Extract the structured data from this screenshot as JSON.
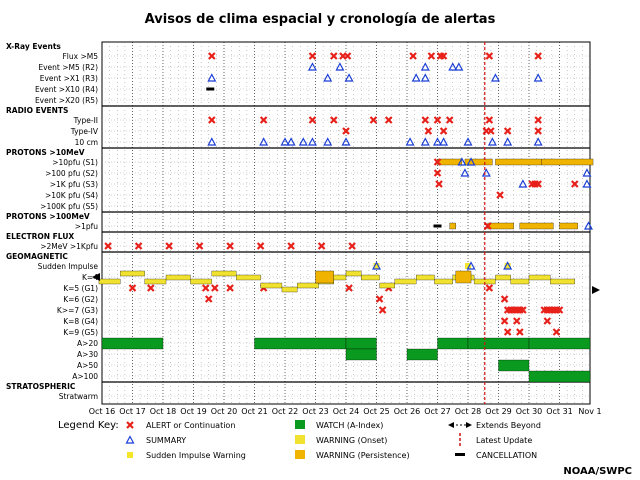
{
  "title": "Avisos de clima espacial y cronología de alertas",
  "credit": "NOAA/SWPC",
  "legend": {
    "key_label": "Legend Key:",
    "items": [
      {
        "symbol": "alert",
        "label": "ALERT or Continuation"
      },
      {
        "symbol": "summary",
        "label": "SUMMARY"
      },
      {
        "symbol": "sudden-impulse-warning",
        "label": "Sudden Impulse Warning"
      },
      {
        "symbol": "watch",
        "label": "WATCH (A-Index)"
      },
      {
        "symbol": "warning-onset",
        "label": "WARNING (Onset)"
      },
      {
        "symbol": "warning-persistence",
        "label": "WARNING (Persistence)"
      },
      {
        "symbol": "extends-beyond",
        "label": "Extends Beyond"
      },
      {
        "symbol": "latest-update",
        "label": "Latest Update"
      },
      {
        "symbol": "cancellation",
        "label": "CANCELLATION"
      }
    ]
  },
  "colors": {
    "alert": "#e8201a",
    "summary": "#1a3fd6",
    "sudden_impulse": "#f5e62a",
    "watch": "#0a9a1f",
    "warning_onset": "#f2e230",
    "warning_persistence": "#f0b400",
    "latest_update": "#d01010"
  },
  "chart_data": {
    "type": "timeline",
    "x": [
      "Oct 16",
      "Oct 17",
      "Oct 18",
      "Oct 19",
      "Oct 20",
      "Oct 21",
      "Oct 22",
      "Oct 23",
      "Oct 24",
      "Oct 25",
      "Oct 26",
      "Oct 27",
      "Oct 28",
      "Oct 29",
      "Oct 30",
      "Oct 31",
      "Nov 1"
    ],
    "latest_update_day": 12.55,
    "sections": [
      {
        "label": "X-Ray Events",
        "rows": [
          "Flux >M5",
          "Event >M5 (R2)",
          "Event >X1 (R3)",
          "Event >X10 (R4)",
          "Event >X20 (R5)"
        ]
      },
      {
        "label": "RADIO EVENTS",
        "rows": [
          "Type-II",
          "Type-IV",
          "10 cm"
        ]
      },
      {
        "label": "PROTONS >10MeV",
        "rows": [
          ">10pfu (S1)",
          ">100 pfu (S2)",
          ">1K pfu (S3)",
          ">10K pfu (S4)",
          ">100K pfu (S5)"
        ]
      },
      {
        "label": "PROTONS >100MeV",
        "rows": [
          ">1pfu"
        ]
      },
      {
        "label": "ELECTRON FLUX",
        "rows": [
          ">2MeV >1Kpfu"
        ]
      },
      {
        "label": "GEOMAGNETIC",
        "rows": [
          "Sudden Impulse",
          "K=4",
          "K=5 (G1)",
          "K=6 (G2)",
          "K>=7 (G3)",
          "K=8 (G4)",
          "K=9 (G5)",
          "A>20",
          "A>30",
          "A>50",
          "A>100"
        ]
      },
      {
        "label": "STRATOSPHERIC",
        "rows": [
          "Stratwarm"
        ]
      }
    ],
    "events": {
      "Flux >M5": {
        "alert": [
          3.6,
          6.9,
          7.6,
          7.9,
          8.05,
          10.2,
          10.8,
          11.1,
          11.2,
          12.7,
          14.3
        ]
      },
      "Event >M5 (R2)": {
        "summary": [
          6.9,
          7.8,
          10.6,
          11.5,
          11.7
        ]
      },
      "Event >X1 (R3)": {
        "summary": [
          3.6,
          7.4,
          8.1,
          10.3,
          10.6,
          12.9,
          14.3
        ]
      },
      "Event >X10 (R4)": {
        "cancel": [
          3.55
        ]
      },
      "Type-II": {
        "alert": [
          3.6,
          5.3,
          6.9,
          7.6,
          8.9,
          9.4,
          10.6,
          11.0,
          11.4,
          12.7,
          14.3
        ]
      },
      "Type-IV": {
        "alert": [
          8.0,
          10.7,
          11.2,
          12.6,
          12.75,
          13.3,
          14.3
        ]
      },
      "10 cm": {
        "summary": [
          3.6,
          5.3,
          6.0,
          6.2,
          6.6,
          6.9,
          7.4,
          8.0,
          10.1,
          10.6,
          11.0,
          11.2,
          12.0,
          12.8,
          13.3,
          14.3
        ]
      },
      ">10pfu (S1)": {
        "alert": [
          11.0
        ],
        "summary": [
          11.8,
          12.1
        ],
        "warn_persist": [
          [
            11.0,
            11.8
          ],
          [
            11.9,
            12.8
          ],
          [
            12.9,
            14.4
          ],
          [
            14.4,
            16.1
          ]
        ]
      },
      ">100 pfu (S2)": {
        "alert": [
          11.0
        ],
        "summary": [
          11.9,
          12.6,
          15.9
        ]
      },
      ">1K pfu (S3)": {
        "alert": [
          11.05,
          14.1,
          14.2,
          14.3,
          15.5
        ],
        "summary": [
          13.8,
          15.9
        ]
      },
      ">10K pfu (S4)": {
        "alert": [
          13.05
        ]
      },
      ">1pfu": {
        "alert": [
          12.65
        ],
        "summary": [
          15.95
        ],
        "warn_persist": [
          [
            11.4,
            11.6
          ],
          [
            12.65,
            13.5
          ],
          [
            13.7,
            14.8
          ],
          [
            15.0,
            15.6
          ]
        ],
        "cancel": [
          11.0
        ]
      },
      ">2MeV >1Kpfu": {
        "alert": [
          0.2,
          1.2,
          2.2,
          3.2,
          4.2,
          5.2,
          6.2,
          7.2,
          8.2
        ]
      },
      "Sudden Impulse": {
        "summary": [
          9.0,
          12.1,
          13.3
        ],
        "sudden_impulse": [
          9.0,
          12.0,
          13.3
        ]
      },
      "K=5 (G1)": {
        "alert": [
          1.0,
          1.6,
          3.4,
          3.7,
          4.2,
          5.3,
          8.1,
          9.4,
          12.7
        ]
      },
      "K=6 (G2)": {
        "alert": [
          3.5,
          9.1,
          13.2
        ]
      },
      "K>=7 (G3)": {
        "alert": [
          9.2,
          13.3,
          13.4,
          13.5,
          13.6,
          13.7,
          13.8,
          14.5,
          14.6,
          14.7,
          14.8,
          14.9,
          15.0
        ]
      },
      "K=8 (G4)": {
        "alert": [
          13.2,
          13.6,
          14.6
        ]
      },
      "K=9 (G5)": {
        "alert": [
          13.3,
          13.7,
          14.9
        ]
      },
      "A>20": {
        "watch": [
          [
            0,
            2
          ],
          [
            5,
            8
          ],
          [
            8,
            9
          ],
          [
            11,
            12
          ],
          [
            12,
            14
          ],
          [
            14,
            16
          ]
        ]
      },
      "A>30": {
        "watch": [
          [
            8,
            9
          ],
          [
            10,
            11
          ]
        ]
      },
      "A>50": {
        "watch": [
          [
            13,
            14
          ]
        ]
      },
      "A>100": {
        "watch": [
          [
            14,
            16
          ]
        ]
      }
    }
  }
}
